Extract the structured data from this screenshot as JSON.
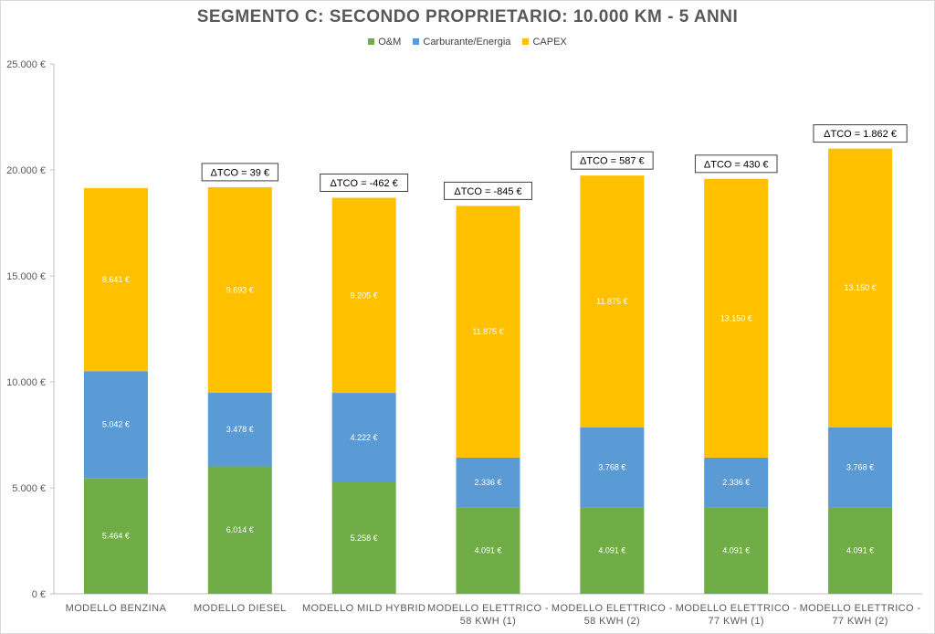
{
  "chart_data": {
    "type": "bar",
    "stacked": true,
    "title": "SEGMENTO C: SECONDO PROPRIETARIO: 10.000 KM - 5 ANNI",
    "categories": [
      [
        "MODELLO BENZINA"
      ],
      [
        "MODELLO DIESEL"
      ],
      [
        "MODELLO MILD HYBRID"
      ],
      [
        "MODELLO ELETTRICO -",
        "58 KWH (1)"
      ],
      [
        "MODELLO ELETTRICO -",
        "58 KWH (2)"
      ],
      [
        "MODELLO ELETTRICO -",
        "77 KWH (1)"
      ],
      [
        "MODELLO ELETTRICO -",
        "77 KWH (2)"
      ]
    ],
    "series": [
      {
        "name": "O&M",
        "color": "#70ad47",
        "values": [
          5464,
          6014,
          5258,
          4091,
          4091,
          4091,
          4091
        ],
        "labels": [
          "5.464 €",
          "6.014 €",
          "5.258 €",
          "4.091 €",
          "4.091 €",
          "4.091 €",
          "4.091 €"
        ]
      },
      {
        "name": "Carburante/Energia",
        "color": "#5b9bd5",
        "values": [
          5042,
          3478,
          4222,
          2336,
          3768,
          2336,
          3768
        ],
        "labels": [
          "5.042 €",
          "3.478 €",
          "4.222 €",
          "2.336 €",
          "3.768 €",
          "2.336 €",
          "3.768 €"
        ]
      },
      {
        "name": "CAPEX",
        "color": "#ffc000",
        "values": [
          8641,
          9693,
          9205,
          11875,
          11875,
          13150,
          13150
        ],
        "labels": [
          "8.641 €",
          "9.693 €",
          "9.205 €",
          "11.875 €",
          "11.875 €",
          "13.150 €",
          "13.150 €"
        ]
      }
    ],
    "annotations": [
      "",
      "ΔTCO = 39 €",
      "ΔTCO = -462 €",
      "ΔTCO = -845 €",
      "ΔTCO = 587 €",
      "ΔTCO = 430 €",
      "ΔTCO = 1.862 €"
    ],
    "yticks": [
      0,
      5000,
      10000,
      15000,
      20000,
      25000
    ],
    "ytick_labels": [
      "0 €",
      "5.000 €",
      "10.000 €",
      "15.000 €",
      "20.000 €",
      "25.000 €"
    ],
    "ylim": [
      0,
      25000
    ],
    "grid": false,
    "legend_position": "top"
  }
}
